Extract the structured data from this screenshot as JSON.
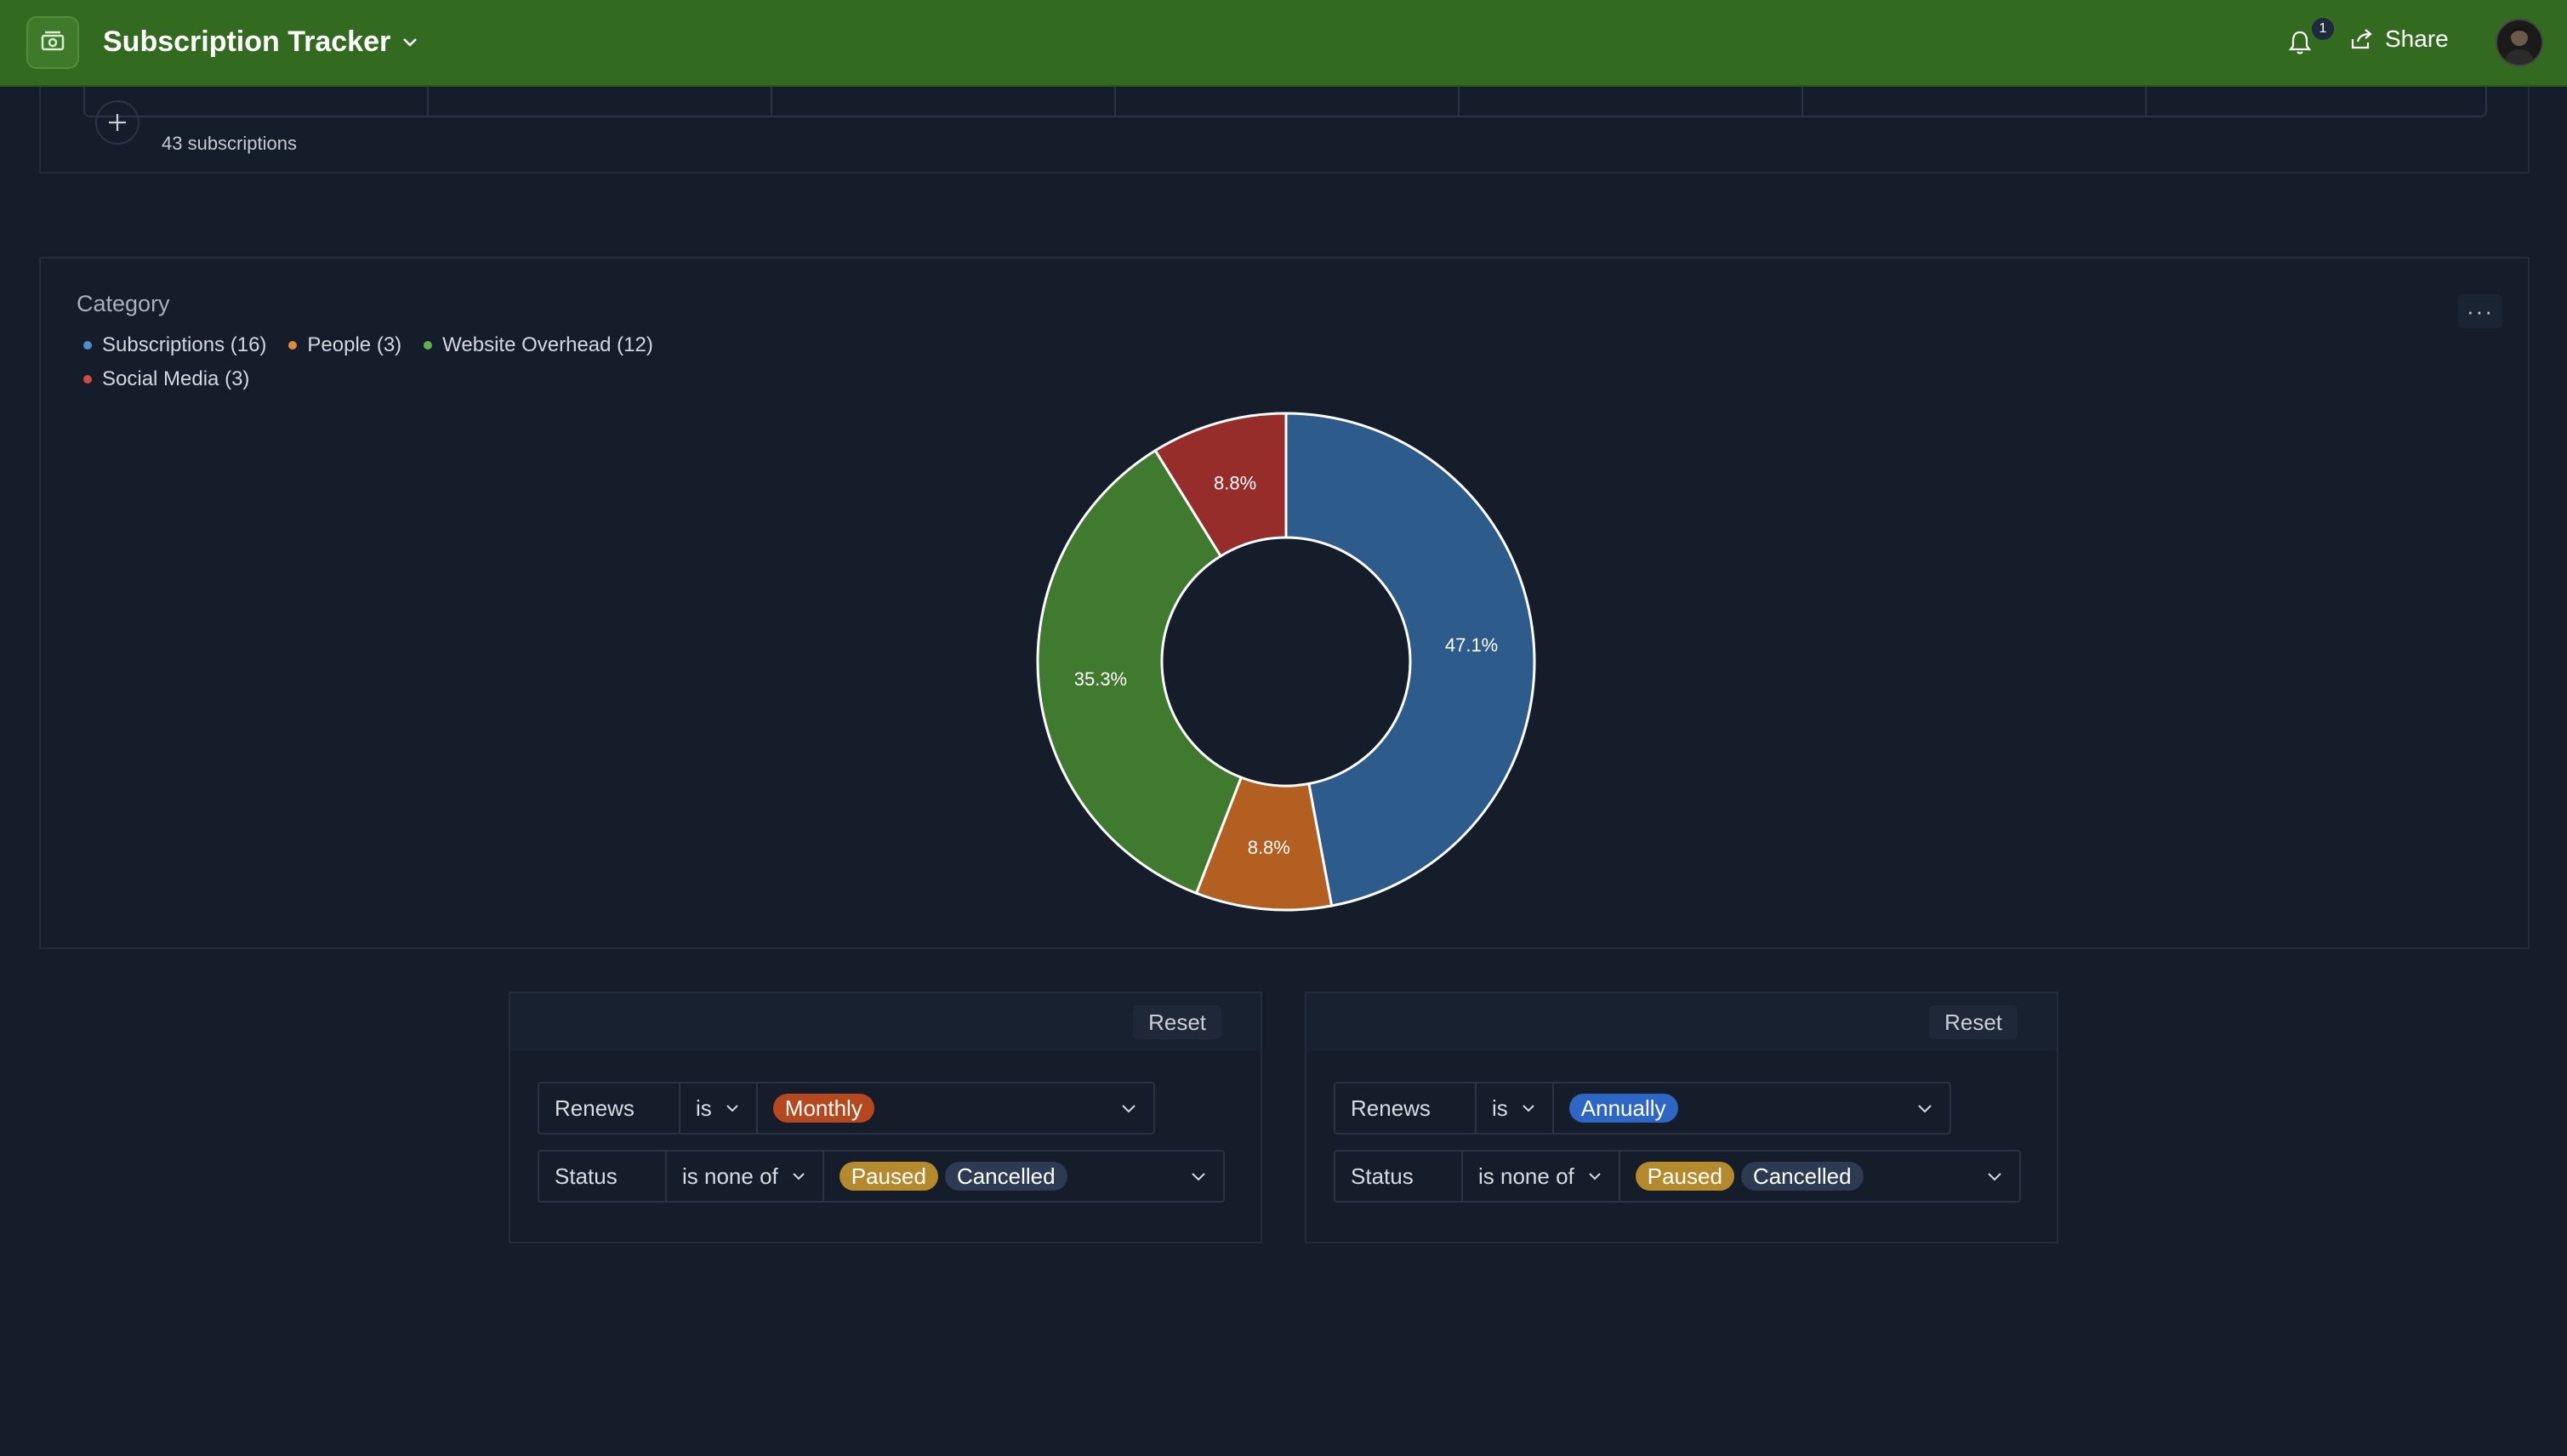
{
  "header": {
    "title": "Subscription Tracker",
    "notification_count": "1",
    "share_label": "Share"
  },
  "table": {
    "row_count": "43 subscriptions"
  },
  "chart": {
    "title": "Category",
    "menu_label": "···"
  },
  "chart_data": {
    "type": "pie",
    "donut": true,
    "title": "Category",
    "legend_position": "top-left",
    "categories": [
      "Subscriptions",
      "People",
      "Website Overhead",
      "Social Media"
    ],
    "legend_labels": [
      "Subscriptions (16)",
      "People (3)",
      "Website Overhead (12)",
      "Social Media (3)"
    ],
    "values": [
      16,
      3,
      12,
      3
    ],
    "percent_labels": [
      "47.1%",
      "8.8%",
      "35.3%",
      "8.8%"
    ],
    "colors": [
      "#2d5b8c",
      "#b35f22",
      "#3f7a2f",
      "#962d2a"
    ],
    "legend_dot_colors": [
      "#4c8fd6",
      "#e08a3c",
      "#5fb34a",
      "#d24b43"
    ]
  },
  "filters": [
    {
      "reset_label": "Reset",
      "rows": [
        {
          "field": "Renews",
          "operator": "is",
          "pills": [
            {
              "label": "Monthly",
              "color": "#b5481c"
            }
          ]
        },
        {
          "field": "Status",
          "operator": "is none of",
          "pills": [
            {
              "label": "Paused",
              "color": "#b58a2c"
            },
            {
              "label": "Cancelled",
              "color": "#2c3a52"
            }
          ]
        }
      ]
    },
    {
      "reset_label": "Reset",
      "rows": [
        {
          "field": "Renews",
          "operator": "is",
          "pills": [
            {
              "label": "Annually",
              "color": "#2d66c4"
            }
          ]
        },
        {
          "field": "Status",
          "operator": "is none of",
          "pills": [
            {
              "label": "Paused",
              "color": "#b58a2c"
            },
            {
              "label": "Cancelled",
              "color": "#2c3a52"
            }
          ]
        }
      ]
    }
  ]
}
